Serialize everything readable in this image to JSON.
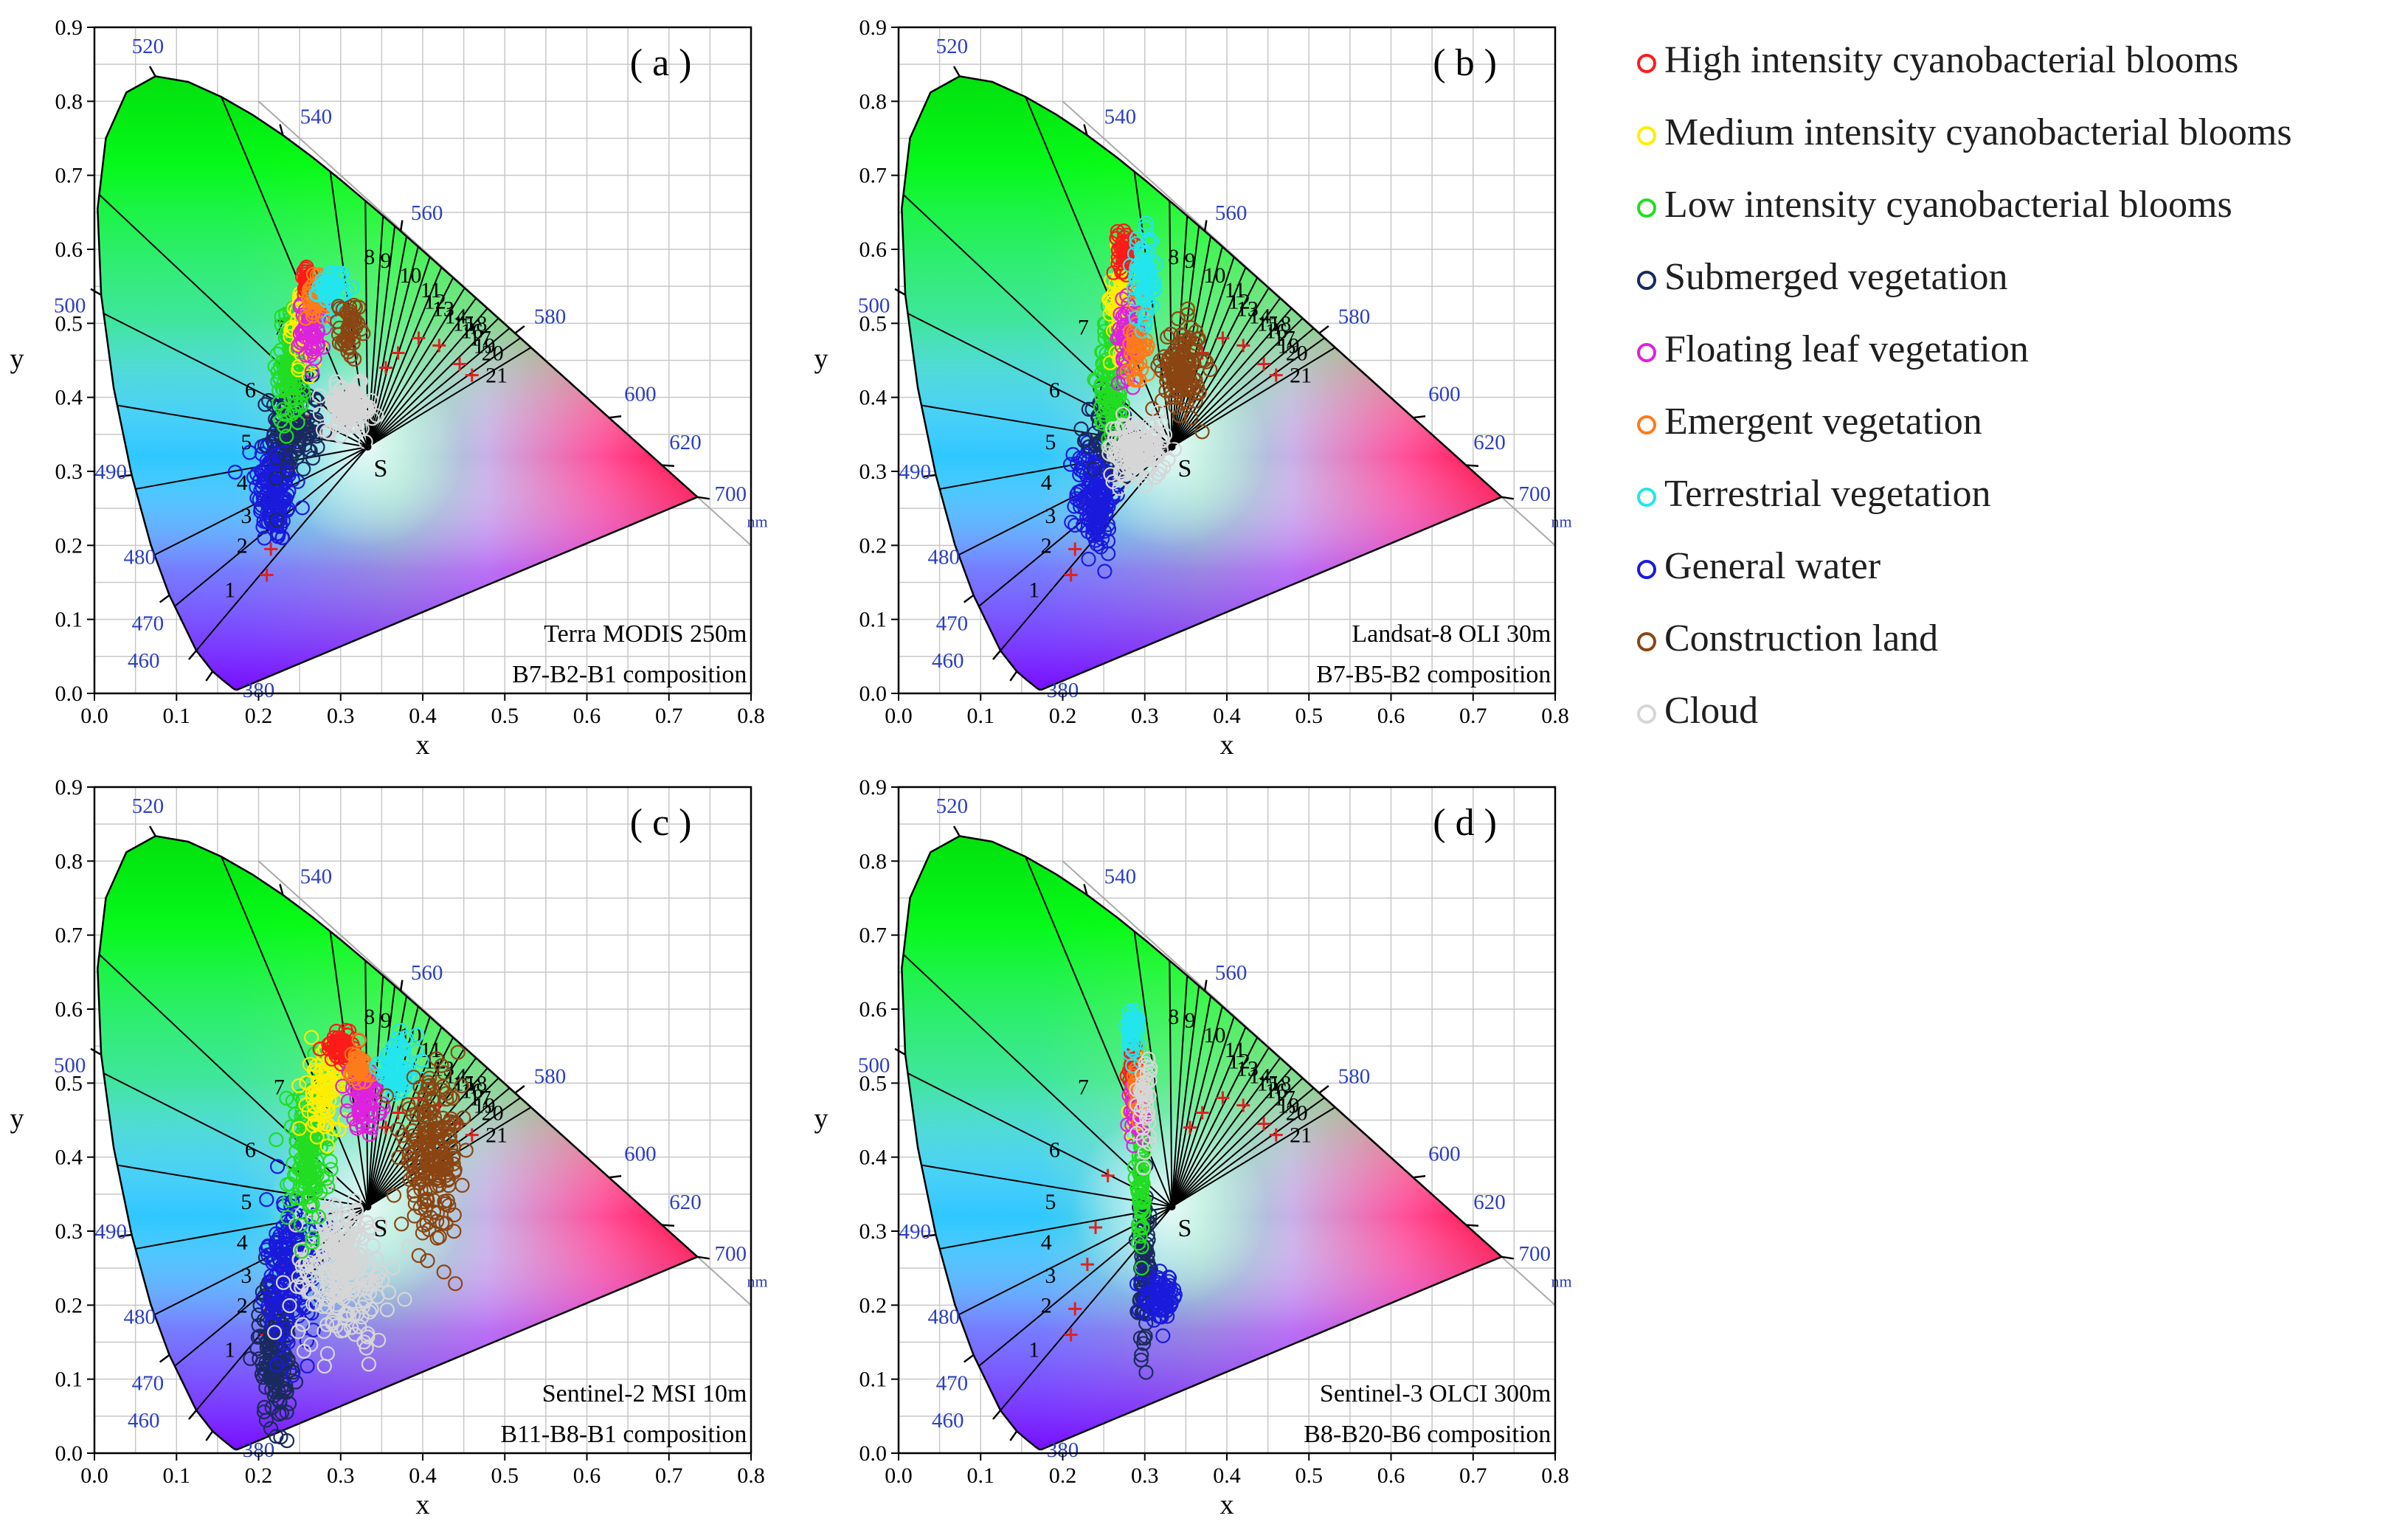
{
  "legend": {
    "items": [
      {
        "label": "High intensity cyanobacterial blooms",
        "color": "#ff1a1a"
      },
      {
        "label": "Medium intensity cyanobacterial blooms",
        "color": "#ffee00"
      },
      {
        "label": "Low intensity cyanobacterial blooms",
        "color": "#22dd22"
      },
      {
        "label": "Submerged vegetation",
        "color": "#1a2a5e"
      },
      {
        "label": "Floating leaf vegetation",
        "color": "#dd22dd"
      },
      {
        "label": "Emergent vegetation",
        "color": "#ff7a1a"
      },
      {
        "label": "Terrestrial vegetation",
        "color": "#22e5ee"
      },
      {
        "label": "General water",
        "color": "#1a1adc"
      },
      {
        "label": "Construction land",
        "color": "#8b4513"
      },
      {
        "label": "Cloud",
        "color": "#d6d6d6"
      }
    ]
  },
  "chart_data": [
    {
      "type": "scatter",
      "panel_label": "( a )",
      "sensor_line": "Terra MODIS 250m",
      "composition_line": "B7-B2-B1  composition",
      "xlabel": "x",
      "ylabel": "y",
      "xlim": [
        0,
        0.8
      ],
      "ylim": [
        0,
        0.9
      ],
      "grid": true,
      "x_ticks": [
        "0.0",
        "0.1",
        "0.2",
        "0.3",
        "0.4",
        "0.5",
        "0.6",
        "0.7",
        "0.8"
      ],
      "y_ticks": [
        "0.0",
        "0.1",
        "0.2",
        "0.3",
        "0.4",
        "0.5",
        "0.6",
        "0.7",
        "0.8",
        "0.9"
      ],
      "clusters": [
        {
          "name": "General water",
          "cx": 0.22,
          "cy": 0.28,
          "sx": 0.012,
          "sy": 0.04,
          "n": 160
        },
        {
          "name": "Submerged vegetation",
          "cx": 0.245,
          "cy": 0.36,
          "sx": 0.015,
          "sy": 0.03,
          "n": 110
        },
        {
          "name": "Low intensity cyanobacterial blooms",
          "cx": 0.24,
          "cy": 0.44,
          "sx": 0.008,
          "sy": 0.04,
          "n": 110
        },
        {
          "name": "Medium intensity cyanobacterial blooms",
          "cx": 0.255,
          "cy": 0.5,
          "sx": 0.007,
          "sy": 0.025,
          "n": 70
        },
        {
          "name": "High intensity cyanobacterial blooms",
          "cx": 0.26,
          "cy": 0.555,
          "sx": 0.004,
          "sy": 0.01,
          "n": 35
        },
        {
          "name": "Floating leaf vegetation",
          "cx": 0.265,
          "cy": 0.49,
          "sx": 0.008,
          "sy": 0.02,
          "n": 60
        },
        {
          "name": "Emergent vegetation",
          "cx": 0.27,
          "cy": 0.535,
          "sx": 0.006,
          "sy": 0.015,
          "n": 40
        },
        {
          "name": "Terrestrial vegetation",
          "cx": 0.29,
          "cy": 0.55,
          "sx": 0.008,
          "sy": 0.012,
          "n": 50
        },
        {
          "name": "Construction land",
          "cx": 0.31,
          "cy": 0.49,
          "sx": 0.006,
          "sy": 0.02,
          "n": 45
        },
        {
          "name": "Cloud",
          "cx": 0.31,
          "cy": 0.385,
          "sx": 0.015,
          "sy": 0.015,
          "n": 110
        }
      ]
    },
    {
      "type": "scatter",
      "panel_label": "( b )",
      "sensor_line": "Landsat-8 OLI 30m",
      "composition_line": "B7-B5-B2  composition",
      "xlabel": "x",
      "ylabel": "y",
      "xlim": [
        0,
        0.8
      ],
      "ylim": [
        0,
        0.9
      ],
      "grid": true,
      "x_ticks": [
        "0.0",
        "0.1",
        "0.2",
        "0.3",
        "0.4",
        "0.5",
        "0.6",
        "0.7",
        "0.8"
      ],
      "y_ticks": [
        "0.0",
        "0.1",
        "0.2",
        "0.3",
        "0.4",
        "0.5",
        "0.6",
        "0.7",
        "0.8",
        "0.9"
      ],
      "clusters": [
        {
          "name": "General water",
          "cx": 0.24,
          "cy": 0.27,
          "sx": 0.012,
          "sy": 0.04,
          "n": 160
        },
        {
          "name": "Submerged vegetation",
          "cx": 0.26,
          "cy": 0.35,
          "sx": 0.012,
          "sy": 0.03,
          "n": 100
        },
        {
          "name": "Low intensity cyanobacterial blooms",
          "cx": 0.26,
          "cy": 0.43,
          "sx": 0.008,
          "sy": 0.045,
          "n": 110
        },
        {
          "name": "Medium intensity cyanobacterial blooms",
          "cx": 0.27,
          "cy": 0.53,
          "sx": 0.006,
          "sy": 0.035,
          "n": 70
        },
        {
          "name": "High intensity cyanobacterial blooms",
          "cx": 0.275,
          "cy": 0.6,
          "sx": 0.004,
          "sy": 0.015,
          "n": 40
        },
        {
          "name": "Floating leaf vegetation",
          "cx": 0.28,
          "cy": 0.48,
          "sx": 0.007,
          "sy": 0.025,
          "n": 60
        },
        {
          "name": "Emergent vegetation",
          "cx": 0.29,
          "cy": 0.47,
          "sx": 0.006,
          "sy": 0.03,
          "n": 40
        },
        {
          "name": "Terrestrial vegetation",
          "cx": 0.3,
          "cy": 0.56,
          "sx": 0.008,
          "sy": 0.03,
          "n": 70
        },
        {
          "name": "Construction land",
          "cx": 0.345,
          "cy": 0.44,
          "sx": 0.012,
          "sy": 0.03,
          "n": 120
        },
        {
          "name": "Cloud",
          "cx": 0.29,
          "cy": 0.33,
          "sx": 0.018,
          "sy": 0.02,
          "n": 140
        }
      ]
    },
    {
      "type": "scatter",
      "panel_label": "( c )",
      "sensor_line": "Sentinel-2  MSI 10m",
      "composition_line": "B11-B8-B1  composition",
      "xlabel": "x",
      "ylabel": "y",
      "xlim": [
        0,
        0.8
      ],
      "ylim": [
        0,
        0.9
      ],
      "grid": true,
      "x_ticks": [
        "0.0",
        "0.1",
        "0.2",
        "0.3",
        "0.4",
        "0.5",
        "0.6",
        "0.7",
        "0.8"
      ],
      "y_ticks": [
        "0.0",
        "0.1",
        "0.2",
        "0.3",
        "0.4",
        "0.5",
        "0.6",
        "0.7",
        "0.8",
        "0.9"
      ],
      "clusters": [
        {
          "name": "Submerged vegetation",
          "cx": 0.22,
          "cy": 0.14,
          "sx": 0.01,
          "sy": 0.05,
          "n": 160
        },
        {
          "name": "General water",
          "cx": 0.24,
          "cy": 0.25,
          "sx": 0.015,
          "sy": 0.05,
          "n": 180
        },
        {
          "name": "Cloud",
          "cx": 0.3,
          "cy": 0.25,
          "sx": 0.03,
          "sy": 0.05,
          "n": 240
        },
        {
          "name": "Low intensity cyanobacterial blooms",
          "cx": 0.26,
          "cy": 0.4,
          "sx": 0.012,
          "sy": 0.05,
          "n": 140
        },
        {
          "name": "Medium intensity cyanobacterial blooms",
          "cx": 0.28,
          "cy": 0.49,
          "sx": 0.01,
          "sy": 0.03,
          "n": 90
        },
        {
          "name": "High intensity cyanobacterial blooms",
          "cx": 0.3,
          "cy": 0.55,
          "sx": 0.01,
          "sy": 0.01,
          "n": 60
        },
        {
          "name": "Floating leaf vegetation",
          "cx": 0.33,
          "cy": 0.48,
          "sx": 0.01,
          "sy": 0.02,
          "n": 70
        },
        {
          "name": "Emergent vegetation",
          "cx": 0.32,
          "cy": 0.52,
          "sx": 0.008,
          "sy": 0.015,
          "n": 40
        },
        {
          "name": "Terrestrial vegetation",
          "cx": 0.37,
          "cy": 0.52,
          "sx": 0.012,
          "sy": 0.02,
          "n": 80
        },
        {
          "name": "Construction land",
          "cx": 0.41,
          "cy": 0.4,
          "sx": 0.018,
          "sy": 0.05,
          "n": 200
        }
      ]
    },
    {
      "type": "scatter",
      "panel_label": "( d )",
      "sensor_line": "Sentinel-3  OLCI 300m",
      "composition_line": "B8-B20-B6  composition",
      "xlabel": "x",
      "ylabel": "y",
      "xlim": [
        0,
        0.8
      ],
      "ylim": [
        0,
        0.9
      ],
      "grid": true,
      "x_ticks": [
        "0.0",
        "0.1",
        "0.2",
        "0.3",
        "0.4",
        "0.5",
        "0.6",
        "0.7",
        "0.8"
      ],
      "y_ticks": [
        "0.0",
        "0.1",
        "0.2",
        "0.3",
        "0.4",
        "0.5",
        "0.6",
        "0.7",
        "0.8",
        "0.9"
      ],
      "clusters": [
        {
          "name": "Submerged vegetation",
          "cx": 0.3,
          "cy": 0.24,
          "sx": 0.004,
          "sy": 0.05,
          "n": 90
        },
        {
          "name": "General water",
          "cx": 0.32,
          "cy": 0.21,
          "sx": 0.01,
          "sy": 0.015,
          "n": 70
        },
        {
          "name": "Low intensity cyanobacterial blooms",
          "cx": 0.295,
          "cy": 0.38,
          "sx": 0.003,
          "sy": 0.05,
          "n": 70
        },
        {
          "name": "Medium intensity cyanobacterial blooms",
          "cx": 0.29,
          "cy": 0.48,
          "sx": 0.003,
          "sy": 0.02,
          "n": 40
        },
        {
          "name": "High intensity cyanobacterial blooms",
          "cx": 0.285,
          "cy": 0.52,
          "sx": 0.003,
          "sy": 0.015,
          "n": 30
        },
        {
          "name": "Floating leaf vegetation",
          "cx": 0.29,
          "cy": 0.46,
          "sx": 0.004,
          "sy": 0.02,
          "n": 40
        },
        {
          "name": "Emergent vegetation",
          "cx": 0.29,
          "cy": 0.5,
          "sx": 0.003,
          "sy": 0.015,
          "n": 20
        },
        {
          "name": "Terrestrial vegetation",
          "cx": 0.285,
          "cy": 0.57,
          "sx": 0.004,
          "sy": 0.02,
          "n": 40
        },
        {
          "name": "Cloud",
          "cx": 0.3,
          "cy": 0.48,
          "sx": 0.004,
          "sy": 0.03,
          "n": 40
        }
      ]
    }
  ],
  "diagram": {
    "white_point_label": "S",
    "nm_label": "nm",
    "wavelength_labels": [
      "380",
      "460",
      "470",
      "480",
      "490",
      "500",
      "520",
      "540",
      "560",
      "580",
      "600",
      "620",
      "700"
    ],
    "dominant_wavelength_numbers": [
      "1",
      "2",
      "3",
      "4",
      "5",
      "6",
      "7",
      "8",
      "9",
      "10",
      "11",
      "12",
      "13",
      "14",
      "15",
      "16",
      "17",
      "18",
      "19",
      "20",
      "21"
    ]
  }
}
